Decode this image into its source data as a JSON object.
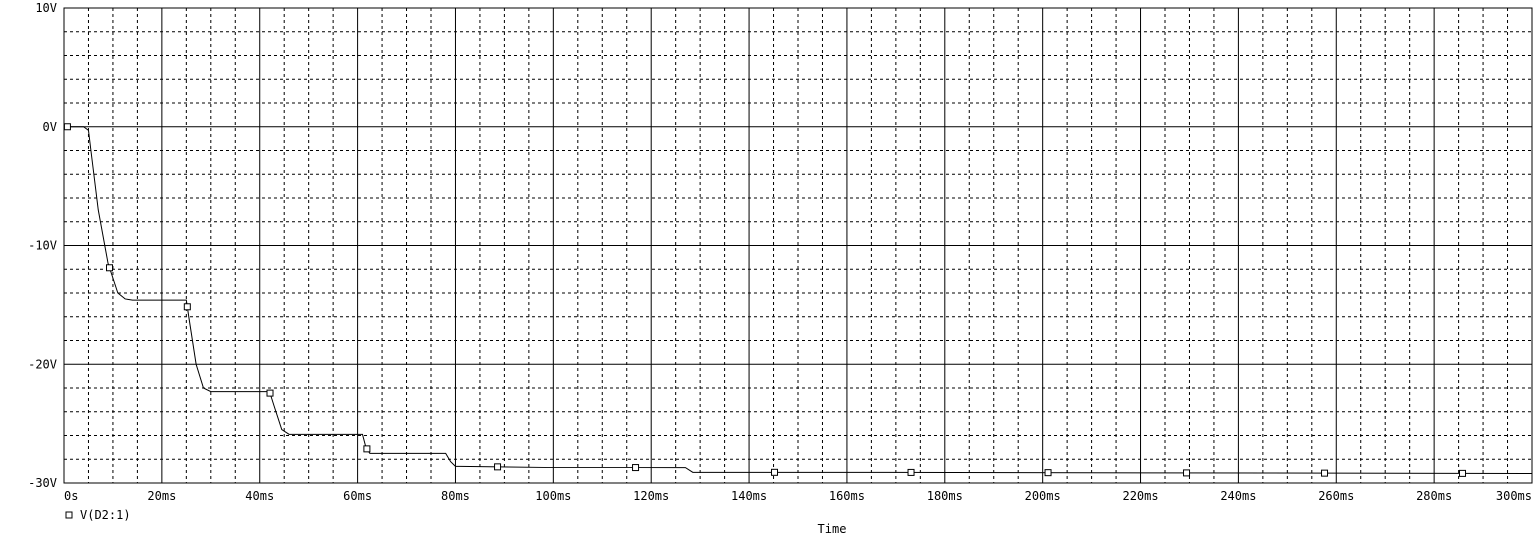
{
  "chart_data": {
    "type": "line",
    "xlabel": "Time",
    "ylabel": "",
    "xlim": [
      0,
      300
    ],
    "ylim": [
      -30,
      10
    ],
    "x_unit": "ms",
    "y_unit": "V",
    "x_ticks": [
      0,
      20,
      40,
      60,
      80,
      100,
      120,
      140,
      160,
      180,
      200,
      220,
      240,
      260,
      280,
      300
    ],
    "x_tick_labels": [
      "0s",
      "20ms",
      "40ms",
      "60ms",
      "80ms",
      "100ms",
      "120ms",
      "140ms",
      "160ms",
      "180ms",
      "200ms",
      "220ms",
      "240ms",
      "260ms",
      "280ms",
      "300ms"
    ],
    "y_ticks": [
      10,
      0,
      -10,
      -20,
      -30
    ],
    "y_tick_labels": [
      "10V",
      "0V",
      "-10V",
      "-20V",
      "-30V"
    ],
    "grid": true,
    "legend_position": "bottom-left",
    "series": [
      {
        "name": "V(D2:1)",
        "marker": "square",
        "x": [
          0,
          4,
          5,
          5.5,
          7,
          9,
          11,
          12.5,
          14,
          25,
          25.5,
          27,
          28.5,
          30,
          42,
          43,
          44.5,
          46,
          61,
          61.7,
          62.5,
          64,
          78,
          79,
          80,
          81,
          100,
          127,
          128.5,
          160,
          300
        ],
        "y": [
          0,
          0,
          -0.3,
          -2,
          -7,
          -11.5,
          -14,
          -14.5,
          -14.6,
          -14.6,
          -16,
          -20,
          -22,
          -22.3,
          -22.3,
          -23.6,
          -25.5,
          -25.9,
          -25.9,
          -27,
          -27.5,
          -27.5,
          -27.5,
          -28.2,
          -28.6,
          -28.6,
          -28.7,
          -28.7,
          -29.1,
          -29.1,
          -29.2
        ],
        "marker_x": [
          0.7,
          9.3,
          25.2,
          42.1,
          61.9,
          88.6,
          116.8,
          145.2,
          173.1,
          201.1,
          229.4,
          257.6,
          285.8
        ]
      }
    ]
  }
}
